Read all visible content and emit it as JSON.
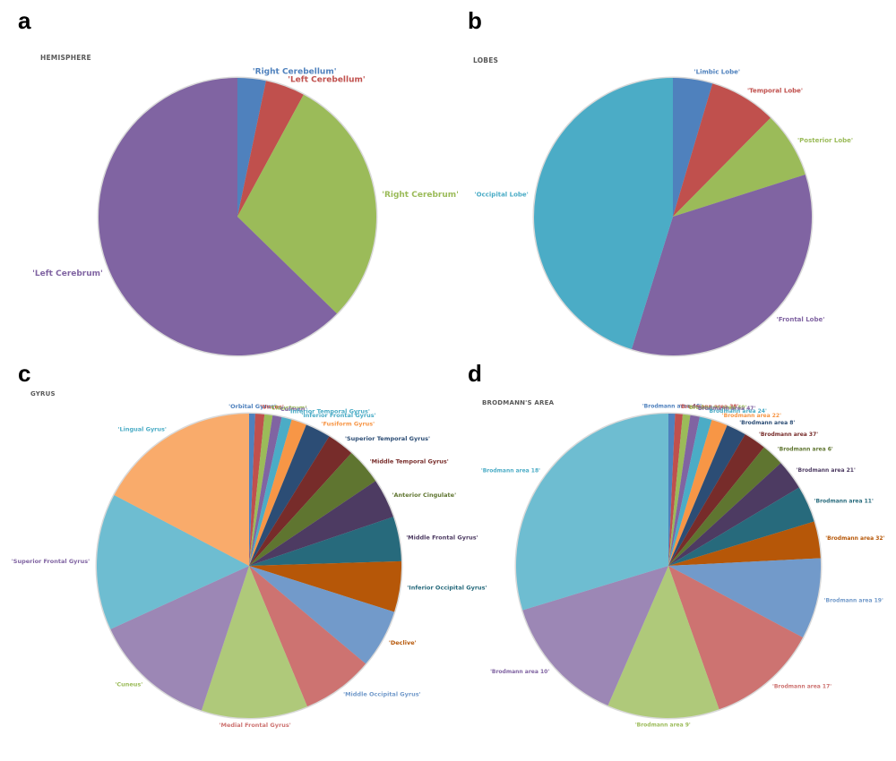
{
  "panel_letters": [
    "a",
    "b",
    "c",
    "d"
  ],
  "chart_data": [
    {
      "type": "pie",
      "title": "HEMISPHERE",
      "label_font": 9,
      "categories": [
        "'Right Cerebellum'",
        "'Left Cerebellum'",
        "'Right Cerebrum'",
        "'Left Cerebrum'"
      ],
      "values": [
        3.3,
        4.6,
        29.4,
        62.7
      ],
      "colors": [
        "#4f81bd",
        "#c0504d",
        "#9bbb59",
        "#8064a2"
      ],
      "label_colors": [
        "#4f81bd",
        "#c0504d",
        "#9bbb59",
        "#8064a2"
      ]
    },
    {
      "type": "pie",
      "title": "LOBES",
      "label_font": 7,
      "categories": [
        "'Limbic Lobe'",
        "'Temporal Lobe'",
        "'Posterior Lobe'",
        "'Frontal Lobe'",
        "'Occipital Lobe'"
      ],
      "values": [
        4.6,
        7.8,
        7.7,
        34.7,
        45.2
      ],
      "colors": [
        "#4f81bd",
        "#c0504d",
        "#9bbb59",
        "#8064a2",
        "#4bacc6"
      ],
      "label_colors": [
        "#4f81bd",
        "#c0504d",
        "#9bbb59",
        "#8064a2",
        "#4bacc6"
      ]
    },
    {
      "type": "pie",
      "title": "GYRUS",
      "label_font": 6.5,
      "categories": [
        "'Orbital Gyrus'",
        "'Uncus'",
        "'Claustrum'",
        "'Culmen'",
        "'Inferior Temporal Gyrus'",
        "'Inferior Frontal Gyrus'",
        "'Fusiform Gyrus'",
        "'Superior Temporal Gyrus'",
        "'Middle Temporal Gyrus'",
        "'Anterior Cingulate'",
        "'Middle Frontal Gyrus'",
        "'Inferior Occipital Gyrus'",
        "'Declive'",
        "'Middle Occipital Gyrus'",
        "'Medial Frontal Gyrus'",
        "'Cuneus'",
        "'Superior Frontal Gyrus'",
        "'Lingual Gyrus'"
      ],
      "values": [
        0.6,
        0.9,
        0.8,
        0.9,
        1.0,
        1.5,
        2.5,
        2.7,
        3.6,
        3.9,
        4.4,
        5.0,
        5.8,
        7.1,
        10.5,
        12.2,
        13.5,
        16.1
      ],
      "colors": [
        "#4f81bd",
        "#c0504d",
        "#9bbb59",
        "#8064a2",
        "#4bacc6",
        "#f79646",
        "#2c4d75",
        "#772c2a",
        "#5f7530",
        "#4d3b62",
        "#276a7c",
        "#b65708",
        "#729aca",
        "#cd7371",
        "#afc97a",
        "#9c87b5",
        "#6ebdd1",
        "#f9ab6b"
      ],
      "label_colors": [
        "#4f81bd",
        "#c0504d",
        "#9bbb59",
        "#8064a2",
        "#4bacc6",
        "#4bacc6",
        "#f79646",
        "#2c4d75",
        "#772c2a",
        "#5f7530",
        "#4d3b62",
        "#276a7c",
        "#b65708",
        "#729aca",
        "#cd7371",
        "#9bbb59",
        "#8064a2",
        "#4bacc6"
      ]
    },
    {
      "type": "pie",
      "title": "BRODMANN'S AREA",
      "label_font": 6,
      "categories": [
        "'Brodmann area 46'",
        "'Brodmann area 38'",
        "'Brodmann area 40'",
        "'Brodmann area 47'",
        "'Brodmann area 24'",
        "'Brodmann area 22'",
        "'Brodmann area 8'",
        "'Brodmann area 37'",
        "'Brodmann area 6'",
        "'Brodmann area 21'",
        "'Brodmann area 11'",
        "'Brodmann area 32'",
        "'Brodmann area 19'",
        "'Brodmann area 17'",
        "'Brodmann area 9'",
        "'Brodmann area 10'",
        "'Brodmann area 18'"
      ],
      "values": [
        0.7,
        0.8,
        0.8,
        1.0,
        1.3,
        1.7,
        2.1,
        2.4,
        2.4,
        3.2,
        3.9,
        3.9,
        8.6,
        11.8,
        11.9,
        13.8,
        29.7
      ],
      "colors": [
        "#4f81bd",
        "#c0504d",
        "#9bbb59",
        "#8064a2",
        "#4bacc6",
        "#f79646",
        "#2c4d75",
        "#772c2a",
        "#5f7530",
        "#4d3b62",
        "#276a7c",
        "#b65708",
        "#729aca",
        "#cd7371",
        "#afc97a",
        "#9c87b5",
        "#6ebdd1"
      ],
      "label_colors": [
        "#4f81bd",
        "#c0504d",
        "#9bbb59",
        "#8064a2",
        "#4bacc6",
        "#f79646",
        "#2c4d75",
        "#772c2a",
        "#5f7530",
        "#4d3b62",
        "#276a7c",
        "#b65708",
        "#729aca",
        "#cd7371",
        "#9bbb59",
        "#8064a2",
        "#4bacc6"
      ]
    }
  ]
}
